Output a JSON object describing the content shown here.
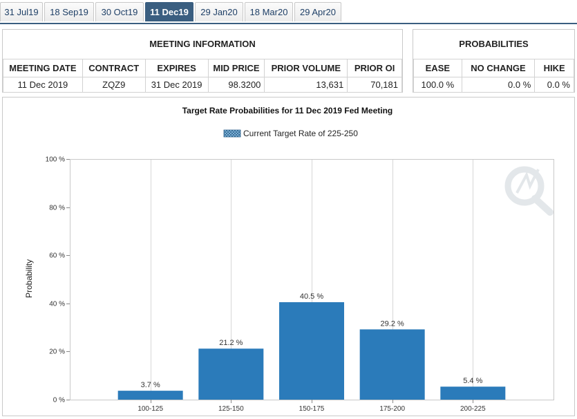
{
  "tabs": [
    {
      "label": "31 Jul19",
      "active": false
    },
    {
      "label": "18 Sep19",
      "active": false
    },
    {
      "label": "30 Oct19",
      "active": false
    },
    {
      "label": "11 Dec19",
      "active": true
    },
    {
      "label": "29 Jan20",
      "active": false
    },
    {
      "label": "18 Mar20",
      "active": false
    },
    {
      "label": "29 Apr20",
      "active": false
    }
  ],
  "meeting": {
    "title": "MEETING INFORMATION",
    "headers": [
      "MEETING DATE",
      "CONTRACT",
      "EXPIRES",
      "MID PRICE",
      "PRIOR VOLUME",
      "PRIOR OI"
    ],
    "values": [
      "11 Dec 2019",
      "ZQZ9",
      "31 Dec 2019",
      "98.3200",
      "13,631",
      "70,181"
    ]
  },
  "probabilities": {
    "title": "PROBABILITIES",
    "headers": [
      "EASE",
      "NO CHANGE",
      "HIKE"
    ],
    "values": [
      "100.0 %",
      "0.0 %",
      "0.0 %"
    ]
  },
  "colors": {
    "bar": "#2b7bba",
    "tab_active": "#3a5e80",
    "legend_swatch": "#8ec3e6"
  },
  "chart_data": {
    "type": "bar",
    "title": "Target Rate Probabilities for 11 Dec 2019 Fed Meeting",
    "legend": "Current Target Rate of 225-250",
    "ylabel": "Probability",
    "xlabel": "",
    "categories": [
      "100-125",
      "125-150",
      "150-175",
      "175-200",
      "200-225"
    ],
    "values": [
      3.7,
      21.2,
      40.5,
      29.2,
      5.4
    ],
    "value_labels": [
      "3.7 %",
      "21.2 %",
      "40.5 %",
      "29.2 %",
      "5.4 %"
    ],
    "ylim": [
      0,
      100
    ],
    "yticks": [
      0,
      20,
      40,
      60,
      80,
      100
    ],
    "ytick_labels": [
      "0 %",
      "20 %",
      "40 %",
      "60 %",
      "80 %",
      "100 %"
    ],
    "grid": "vertical",
    "legend_position": "top-center"
  }
}
